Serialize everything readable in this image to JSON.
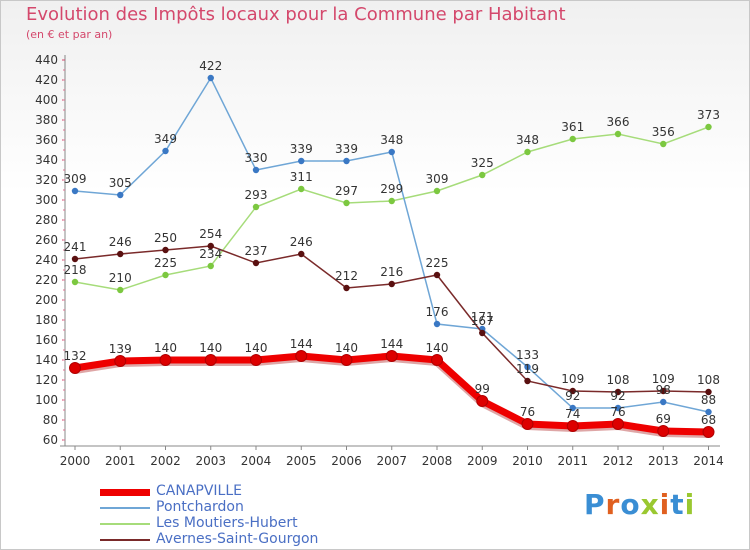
{
  "header": {
    "title": "Evolution des Impôts locaux pour la Commune par Habitant",
    "subtitle": "(en € et par an)"
  },
  "logo": {
    "text": "Proxiti",
    "colors": [
      "#3a8ed4",
      "#e06020",
      "#3a8ed4",
      "#9ac830",
      "#e06020",
      "#3a8ed4",
      "#9ac830"
    ]
  },
  "chart_data": {
    "type": "line",
    "title": "Evolution des Impôts locaux pour la Commune par Habitant",
    "subtitle": "(en € et par an)",
    "xlabel": "",
    "ylabel": "",
    "ylim": [
      60,
      440
    ],
    "ytick_step": 20,
    "grid": false,
    "legend_position": "bottom-left",
    "x": [
      2000,
      2001,
      2002,
      2003,
      2004,
      2005,
      2006,
      2007,
      2008,
      2009,
      2010,
      2011,
      2012,
      2013,
      2014
    ],
    "series": [
      {
        "name": "CANAPVILLE",
        "color": "#ee0000",
        "width": "thick",
        "values": [
          132,
          139,
          140,
          140,
          140,
          144,
          140,
          144,
          140,
          99,
          76,
          74,
          76,
          69,
          68
        ],
        "labels": [
          "132",
          "139",
          "140",
          "140",
          "140",
          "144",
          "140",
          "144",
          "140",
          "99",
          "76",
          "74",
          "76",
          "69",
          "68"
        ]
      },
      {
        "name": "Pontchardon",
        "color": "#6fa6d6",
        "marker": "#3a78c4",
        "values": [
          309,
          305,
          349,
          422,
          330,
          339,
          339,
          348,
          176,
          171,
          133,
          92,
          92,
          98,
          88
        ],
        "labels": [
          "309",
          "305",
          "349",
          "422",
          "330",
          "339",
          "339",
          "348",
          "176",
          "171",
          "133",
          "92",
          "92",
          "98",
          "88"
        ]
      },
      {
        "name": "Les Moutiers-Hubert",
        "color": "#a6dc7a",
        "marker": "#7cc840",
        "values": [
          218,
          210,
          225,
          234,
          293,
          311,
          297,
          299,
          309,
          325,
          348,
          361,
          366,
          356,
          373
        ],
        "labels": [
          "218",
          "210",
          "225",
          "234",
          "293",
          "311",
          "297",
          "299",
          "309",
          "325",
          "348",
          "361",
          "366",
          "356",
          "373"
        ]
      },
      {
        "name": "Avernes-Saint-Gourgon",
        "color": "#7a2a2a",
        "marker": "#5a1010",
        "values": [
          241,
          246,
          250,
          254,
          237,
          246,
          212,
          216,
          225,
          167,
          119,
          109,
          108,
          109,
          108
        ],
        "labels": [
          "241",
          "246",
          "250",
          "254",
          "237",
          "246",
          "212",
          "216",
          "225",
          "167",
          "119",
          "109",
          "108",
          "109",
          "108"
        ]
      }
    ]
  }
}
